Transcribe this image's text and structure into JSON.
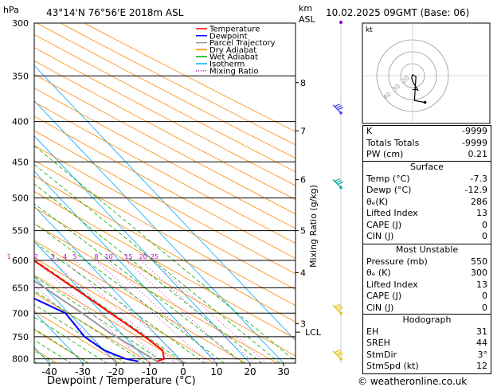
{
  "header": {
    "pressure_unit": "hPa",
    "location": "43°14'N  76°56'E  2018m  ASL",
    "height_unit_km": "km",
    "height_unit_asl": "ASL",
    "datetime": "10.02.2025  09GMT  (Base: 06)"
  },
  "legend": [
    {
      "label": "Temperature",
      "color": "#ff0000",
      "style": "solid"
    },
    {
      "label": "Dewpoint",
      "color": "#0000ff",
      "style": "solid"
    },
    {
      "label": "Parcel Trajectory",
      "color": "#999999",
      "style": "solid"
    },
    {
      "label": "Dry Adiabat",
      "color": "#ff8800",
      "style": "solid"
    },
    {
      "label": "Wet Adiabat",
      "color": "#00aa00",
      "style": "solid"
    },
    {
      "label": "Isotherm",
      "color": "#00aaff",
      "style": "solid"
    },
    {
      "label": "Mixing Ratio",
      "color": "#cc00cc",
      "style": "dotted"
    }
  ],
  "chart_data": {
    "type": "skew-T log-p",
    "xlabel": "Dewpoint / Temperature (°C)",
    "ylabel": "Mixing Ratio (g/kg)",
    "x_ticks": [
      -40,
      -30,
      -20,
      -10,
      0,
      10,
      20,
      30
    ],
    "pressure_levels": [
      300,
      350,
      400,
      450,
      500,
      550,
      600,
      650,
      700,
      750,
      800
    ],
    "height_km_ticks": [
      {
        "km": "3",
        "p": 722
      },
      {
        "km": "4",
        "p": 622
      },
      {
        "km": "5",
        "p": 550
      },
      {
        "km": "6",
        "p": 474
      },
      {
        "km": "7",
        "p": 411
      },
      {
        "km": "8",
        "p": 357
      }
    ],
    "lcl": {
      "label": "LCL",
      "p": 740
    },
    "mixing_ratio_labels": [
      "1",
      "2",
      "3",
      "4",
      "5",
      "8",
      "10",
      "15",
      "20",
      "25"
    ],
    "temperature": [
      {
        "p": 806,
        "t": -7.3
      },
      {
        "p": 800,
        "t": -4.5
      },
      {
        "p": 780,
        "t": -2.5
      },
      {
        "p": 750,
        "t": -4
      },
      {
        "p": 700,
        "t": -7.5
      },
      {
        "p": 650,
        "t": -11.3
      },
      {
        "p": 600,
        "t": -15.5
      },
      {
        "p": 550,
        "t": -20
      },
      {
        "p": 500,
        "t": -26
      },
      {
        "p": 450,
        "t": -32.5
      },
      {
        "p": 400,
        "t": -39.5
      },
      {
        "p": 350,
        "t": -47
      },
      {
        "p": 300,
        "t": -54
      }
    ],
    "dewpoint": [
      {
        "p": 806,
        "t": -12.9
      },
      {
        "p": 800,
        "t": -16
      },
      {
        "p": 780,
        "t": -20
      },
      {
        "p": 750,
        "t": -22
      },
      {
        "p": 700,
        "t": -21
      },
      {
        "p": 650,
        "t": -30
      },
      {
        "p": 600,
        "t": -34
      },
      {
        "p": 550,
        "t": -37
      },
      {
        "p": 500,
        "t": -42
      },
      {
        "p": 450,
        "t": -48
      },
      {
        "p": 400,
        "t": -51
      },
      {
        "p": 350,
        "t": -58
      },
      {
        "p": 300,
        "t": -64
      }
    ],
    "parcel": [
      {
        "p": 806,
        "t": -7.3
      },
      {
        "p": 740,
        "t": -13.5
      },
      {
        "p": 700,
        "t": -16
      },
      {
        "p": 650,
        "t": -20
      },
      {
        "p": 600,
        "t": -24.5
      },
      {
        "p": 550,
        "t": -29.5
      },
      {
        "p": 500,
        "t": -35
      },
      {
        "p": 450,
        "t": -41.5
      },
      {
        "p": 400,
        "t": -48.5
      },
      {
        "p": 350,
        "t": -56
      },
      {
        "p": 300,
        "t": -64
      }
    ],
    "wind_barbs_p": [
      390,
      485,
      700,
      800
    ]
  },
  "hodograph": {
    "unit": "kt",
    "ring_labels": [
      "40",
      "30",
      "20"
    ],
    "trace": [
      [
        0.6,
        1.6
      ],
      [
        0.3,
        1.1
      ],
      [
        0.0,
        0.6
      ],
      [
        -0.1,
        0.2
      ],
      [
        0.0,
        -0.1
      ],
      [
        0.35,
        0.1
      ],
      [
        0.2,
        2.6
      ],
      [
        1.3,
        2.8
      ]
    ],
    "storm": [
      0.2,
      1.4
    ]
  },
  "indices": [
    {
      "label": "K",
      "value": "-9999"
    },
    {
      "label": "Totals Totals",
      "value": "-9999"
    },
    {
      "label": "PW (cm)",
      "value": "0.21"
    }
  ],
  "surface": {
    "title": "Surface",
    "rows": [
      {
        "label": "Temp (°C)",
        "value": "-7.3"
      },
      {
        "label": "Dewp (°C)",
        "value": "-12.9"
      },
      {
        "label": "θₑ(K)",
        "value": "286"
      },
      {
        "label": "Lifted Index",
        "value": "13"
      },
      {
        "label": "CAPE (J)",
        "value": "0"
      },
      {
        "label": "CIN (J)",
        "value": "0"
      }
    ]
  },
  "most_unstable": {
    "title": "Most Unstable",
    "rows": [
      {
        "label": "Pressure (mb)",
        "value": "550"
      },
      {
        "label": "θₑ (K)",
        "value": "300"
      },
      {
        "label": "Lifted Index",
        "value": "13"
      },
      {
        "label": "CAPE (J)",
        "value": "0"
      },
      {
        "label": "CIN (J)",
        "value": "0"
      }
    ]
  },
  "hodograph_table": {
    "title": "Hodograph",
    "rows": [
      {
        "label": "EH",
        "value": "31"
      },
      {
        "label": "SREH",
        "value": "44"
      },
      {
        "label": "StmDir",
        "value": "3°"
      },
      {
        "label": "StmSpd (kt)",
        "value": "12"
      }
    ]
  },
  "footer": {
    "copyright": "© weatheronline.co.uk"
  }
}
